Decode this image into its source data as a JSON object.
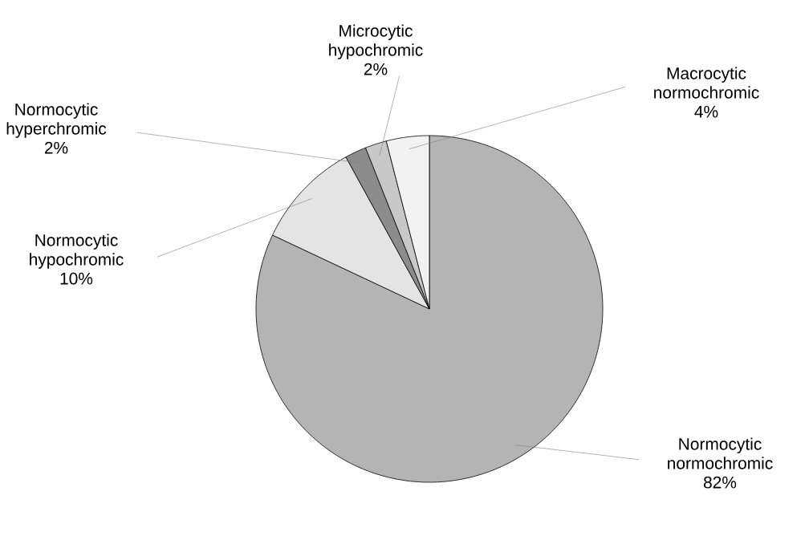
{
  "chart_data": {
    "type": "pie",
    "categories": [
      "Normocytic normochromic",
      "Normocytic hypochromic",
      "Normocytic hyperchromic",
      "Microcytic hypochromic",
      "Macrocytic normochromic"
    ],
    "values": [
      82,
      10,
      2,
      2,
      4
    ],
    "colors": [
      "#b4b4b4",
      "#e4e4e4",
      "#8c8c8c",
      "#c8c8c8",
      "#f2f2f2"
    ],
    "value_labels": [
      "82%",
      "10%",
      "2%",
      "2%",
      "4%"
    ]
  }
}
